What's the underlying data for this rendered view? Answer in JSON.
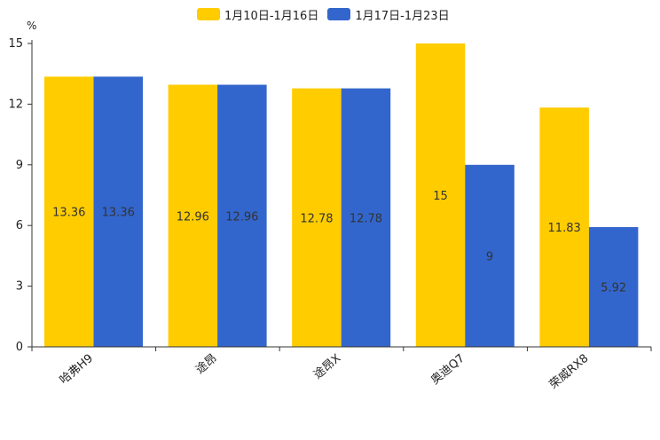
{
  "chart_data": {
    "type": "bar",
    "title": "",
    "xlabel": "",
    "ylabel": "%",
    "ylim": [
      0,
      15
    ],
    "yticks": [
      0,
      3,
      6,
      9,
      12,
      15
    ],
    "categories": [
      "哈弗H9",
      "途昂",
      "途昂X",
      "奥迪Q7",
      "荣威RX8"
    ],
    "series": [
      {
        "name": "1月10日-1月16日",
        "color": "#FFCC00",
        "values": [
          13.36,
          12.96,
          12.78,
          15,
          11.83
        ]
      },
      {
        "name": "1月17日-1月23日",
        "color": "#3366CC",
        "values": [
          13.36,
          12.96,
          12.78,
          9,
          5.92
        ]
      }
    ],
    "legend_position": "top-center",
    "grid": false
  }
}
